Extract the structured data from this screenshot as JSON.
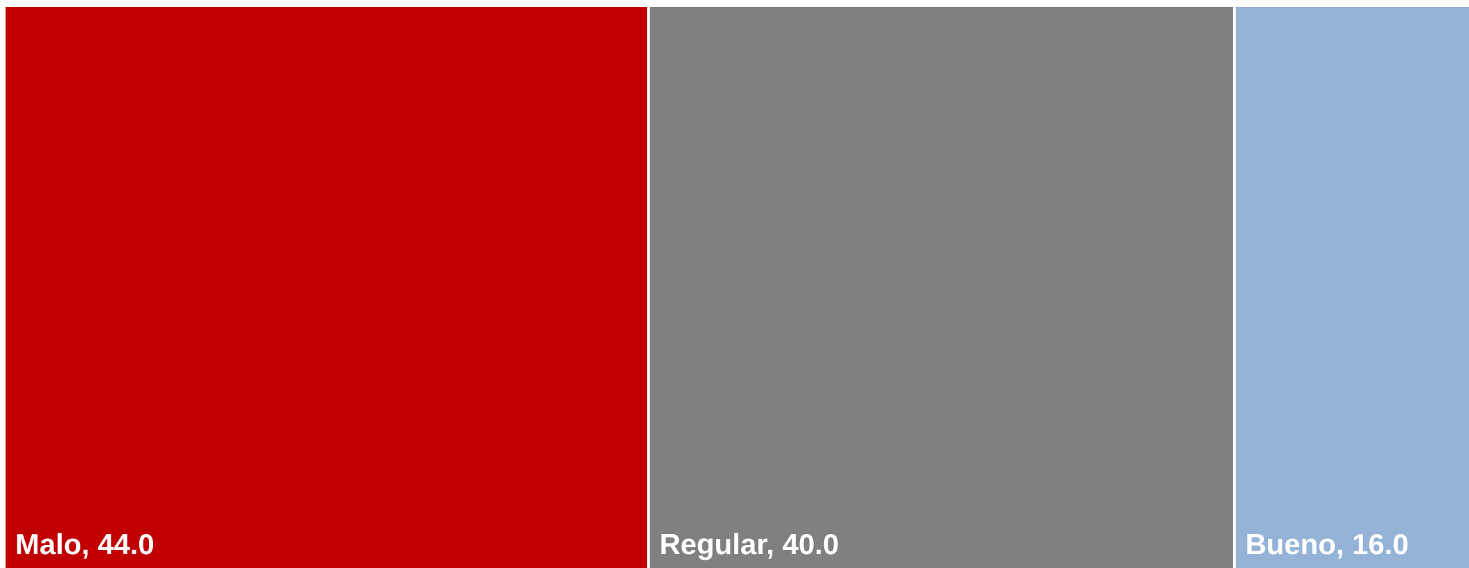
{
  "chart_data": {
    "type": "treemap",
    "categories": [
      "Malo",
      "Regular",
      "Bueno"
    ],
    "values": [
      44.0,
      40.0,
      16.0
    ],
    "labels": [
      "Malo, 44.0",
      "Regular, 40.0",
      "Bueno, 16.0"
    ],
    "colors": [
      "#c00000",
      "#808080",
      "#95b3d7"
    ],
    "label_color": "#ffffff",
    "title": "",
    "xlabel": "",
    "ylabel": ""
  }
}
